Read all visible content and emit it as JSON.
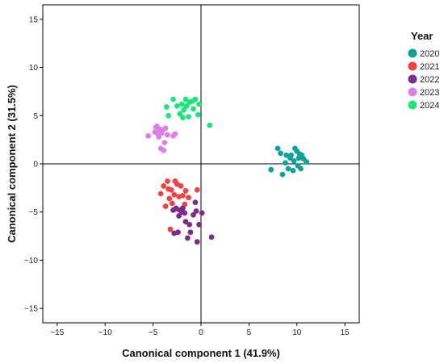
{
  "chart_data": {
    "type": "scatter",
    "xlabel": "Canonical component 1  (41.9%)",
    "ylabel": "Canonical component 2  (31.5%)",
    "xlim": [
      -16.5,
      16.5
    ],
    "ylim": [
      -16.5,
      16.5
    ],
    "xticks": [
      -15,
      -10,
      -5,
      0,
      5,
      10,
      15
    ],
    "yticks": [
      -15,
      -10,
      -5,
      0,
      5,
      10,
      15
    ],
    "grid": false,
    "reference_lines": {
      "x": 0,
      "y": 0
    },
    "legend": {
      "title": "Year",
      "position": "right"
    },
    "series": [
      {
        "name": "2020",
        "color": "#0fa398",
        "points": [
          [
            7.3,
            -0.6
          ],
          [
            8.0,
            1.6
          ],
          [
            8.3,
            1.1
          ],
          [
            8.5,
            -1.1
          ],
          [
            8.8,
            0.1
          ],
          [
            8.9,
            0.9
          ],
          [
            9.1,
            -0.5
          ],
          [
            9.3,
            0.6
          ],
          [
            9.4,
            0.9
          ],
          [
            9.6,
            -0.7
          ],
          [
            9.7,
            0.3
          ],
          [
            9.8,
            1.6
          ],
          [
            10.0,
            1.3
          ],
          [
            10.1,
            -0.2
          ],
          [
            10.2,
            0.6
          ],
          [
            10.4,
            -0.5
          ],
          [
            10.5,
            0.9
          ],
          [
            10.7,
            0.5
          ],
          [
            11.0,
            0.2
          ],
          [
            10.3,
            1.0
          ]
        ]
      },
      {
        "name": "2021",
        "color": "#ee4444",
        "points": [
          [
            -4.2,
            -3.1
          ],
          [
            -3.9,
            -2.3
          ],
          [
            -3.7,
            -4.4
          ],
          [
            -3.5,
            -1.8
          ],
          [
            -3.4,
            -2.6
          ],
          [
            -3.3,
            -3.6
          ],
          [
            -3.2,
            -6.8
          ],
          [
            -3.1,
            -2.7
          ],
          [
            -3.0,
            -4.1
          ],
          [
            -2.8,
            -3.2
          ],
          [
            -2.7,
            -1.8
          ],
          [
            -2.6,
            -4.7
          ],
          [
            -2.5,
            -2.1
          ],
          [
            -2.3,
            -3.4
          ],
          [
            -2.1,
            -2.3
          ],
          [
            -1.9,
            -3.3
          ],
          [
            -1.7,
            -4.2
          ],
          [
            -1.6,
            -2.8
          ],
          [
            -1.3,
            -3.5
          ],
          [
            -0.4,
            -2.7
          ]
        ]
      },
      {
        "name": "2022",
        "color": "#7b2d8b",
        "points": [
          [
            -2.8,
            -7.2
          ],
          [
            -2.6,
            -4.6
          ],
          [
            -2.4,
            -7.1
          ],
          [
            -2.3,
            -5.4
          ],
          [
            -2.2,
            -4.8
          ],
          [
            -2.0,
            -5.0
          ],
          [
            -1.9,
            -4.6
          ],
          [
            -1.7,
            -5.1
          ],
          [
            -1.6,
            -6.0
          ],
          [
            -1.4,
            -7.7
          ],
          [
            -1.2,
            -6.3
          ],
          [
            -1.1,
            -7.1
          ],
          [
            -0.8,
            -5.3
          ],
          [
            -0.6,
            -4.0
          ],
          [
            -0.5,
            -4.9
          ],
          [
            -0.4,
            -8.1
          ],
          [
            -0.2,
            -6.3
          ],
          [
            0.1,
            -5.1
          ],
          [
            1.1,
            -7.6
          ],
          [
            -2.9,
            -4.8
          ]
        ]
      },
      {
        "name": "2023",
        "color": "#df7fe6",
        "points": [
          [
            -5.5,
            2.9
          ],
          [
            -4.8,
            3.3
          ],
          [
            -4.7,
            3.8
          ],
          [
            -4.5,
            3.1
          ],
          [
            -4.4,
            2.8
          ],
          [
            -4.3,
            3.6
          ],
          [
            -4.2,
            1.6
          ],
          [
            -4.1,
            3.2
          ],
          [
            -4.0,
            3.5
          ],
          [
            -3.9,
            1.4
          ],
          [
            -3.8,
            2.2
          ],
          [
            -3.7,
            3.7
          ],
          [
            -3.5,
            3.0
          ],
          [
            -2.9,
            2.9
          ],
          [
            -2.7,
            3.1
          ],
          [
            -4.6,
            3.9
          ]
        ]
      },
      {
        "name": "2024",
        "color": "#1ee47a",
        "points": [
          [
            -3.6,
            5.9
          ],
          [
            -3.4,
            5.0
          ],
          [
            -2.9,
            6.7
          ],
          [
            -2.5,
            6.0
          ],
          [
            -2.2,
            5.2
          ],
          [
            -2.0,
            6.2
          ],
          [
            -1.8,
            5.6
          ],
          [
            -1.6,
            6.7
          ],
          [
            -1.5,
            6.0
          ],
          [
            -1.3,
            4.9
          ],
          [
            -1.2,
            6.4
          ],
          [
            -0.9,
            6.5
          ],
          [
            -0.8,
            5.7
          ],
          [
            -0.6,
            6.7
          ],
          [
            -0.3,
            5.1
          ],
          [
            -0.2,
            6.2
          ],
          [
            0.9,
            4.0
          ],
          [
            -1.9,
            4.8
          ]
        ]
      }
    ]
  }
}
